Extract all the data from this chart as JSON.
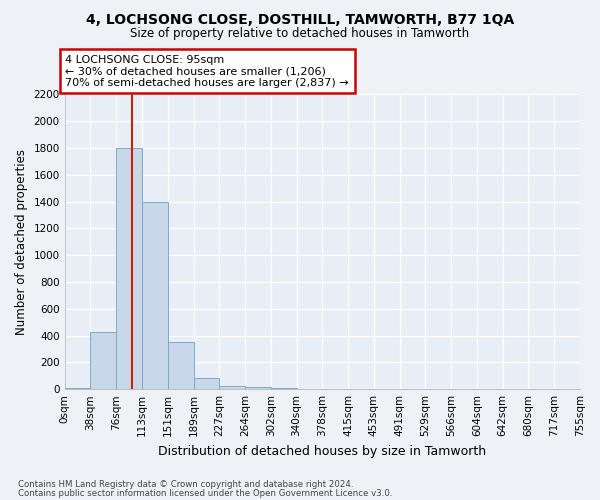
{
  "title": "4, LOCHSONG CLOSE, DOSTHILL, TAMWORTH, B77 1QA",
  "subtitle": "Size of property relative to detached houses in Tamworth",
  "xlabel": "Distribution of detached houses by size in Tamworth",
  "ylabel": "Number of detached properties",
  "bar_color": "#c8d8ea",
  "bar_edge_color": "#7aaacc",
  "bins": [
    "0sqm",
    "38sqm",
    "76sqm",
    "113sqm",
    "151sqm",
    "189sqm",
    "227sqm",
    "264sqm",
    "302sqm",
    "340sqm",
    "378sqm",
    "415sqm",
    "453sqm",
    "491sqm",
    "529sqm",
    "566sqm",
    "604sqm",
    "642sqm",
    "680sqm",
    "717sqm",
    "755sqm"
  ],
  "values": [
    10,
    425,
    1800,
    1400,
    350,
    80,
    25,
    15,
    10,
    0,
    0,
    0,
    0,
    0,
    0,
    0,
    0,
    0,
    0,
    0
  ],
  "ylim": [
    0,
    2200
  ],
  "yticks": [
    0,
    200,
    400,
    600,
    800,
    1000,
    1200,
    1400,
    1600,
    1800,
    2000,
    2200
  ],
  "vline_x": 2.62,
  "annotation_title": "4 LOCHSONG CLOSE: 95sqm",
  "annotation_line1": "← 30% of detached houses are smaller (1,206)",
  "annotation_line2": "70% of semi-detached houses are larger (2,837) →",
  "annotation_box_color": "#ffffff",
  "annotation_box_edge": "#cc0000",
  "vline_color": "#cc2200",
  "footer_line1": "Contains HM Land Registry data © Crown copyright and database right 2024.",
  "footer_line2": "Contains public sector information licensed under the Open Government Licence v3.0.",
  "bg_color": "#eef2f7",
  "plot_bg_color": "#e8eef5",
  "grid_color": "#ffffff",
  "figsize": [
    6.0,
    5.0
  ],
  "dpi": 100
}
